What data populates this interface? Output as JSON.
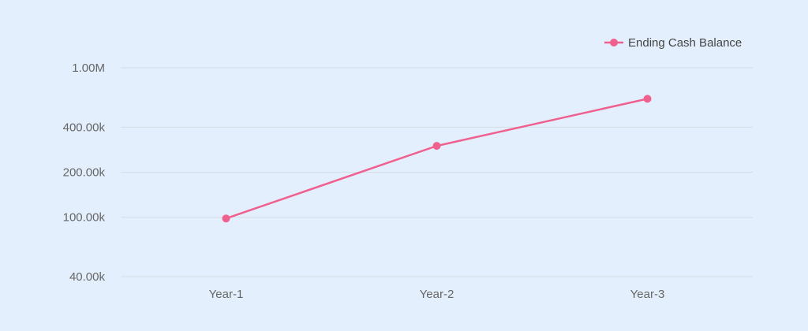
{
  "chart_data": {
    "type": "line",
    "scale": "log",
    "categories": [
      "Year-1",
      "Year-2",
      "Year-3"
    ],
    "series": [
      {
        "name": "Ending Cash Balance",
        "values": [
          98000,
          300000,
          620000
        ],
        "color": "#f0608f"
      }
    ],
    "yticks": [
      {
        "value": 40000,
        "label": "40.00k"
      },
      {
        "value": 100000,
        "label": "100.00k"
      },
      {
        "value": 200000,
        "label": "200.00k"
      },
      {
        "value": 400000,
        "label": "400.00k"
      },
      {
        "value": 1000000,
        "label": "1.00M"
      }
    ],
    "ylim": [
      40000,
      1000000
    ],
    "grid": true,
    "gridColor": "#d6dde6",
    "legend": "top-right"
  }
}
